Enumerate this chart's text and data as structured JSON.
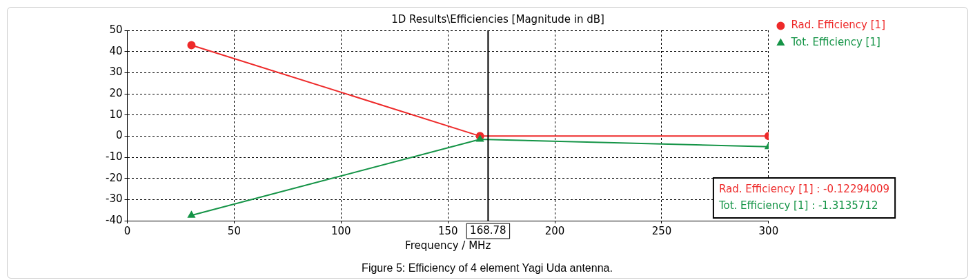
{
  "chart_data": {
    "type": "line",
    "title": "1D Results\\Efficiencies [Magnitude in dB]",
    "xlabel": "Frequency / MHz",
    "series": [
      {
        "name": "Rad. Efficiency [1]",
        "color": "#ee2a2a",
        "x": [
          30,
          165,
          300
        ],
        "values": [
          43,
          0,
          0
        ],
        "marker": "circle"
      },
      {
        "name": "Tot. Efficiency [1]",
        "color": "#159447",
        "x": [
          30,
          165,
          300
        ],
        "values": [
          -37.5,
          -1.5,
          -5
        ],
        "marker": "triangle"
      }
    ],
    "xlim": [
      0,
      300
    ],
    "xticks": [
      0,
      50,
      100,
      150,
      200,
      250,
      300
    ],
    "ylim": [
      -40,
      50
    ],
    "yticks": [
      -40,
      -30,
      -20,
      -10,
      0,
      10,
      20,
      30,
      40,
      50
    ],
    "grid": true,
    "legend": "right",
    "ref_lines": [
      {
        "axis": "x",
        "value": 168.78,
        "label": "168.78",
        "color": "#000000"
      }
    ],
    "annotations": [
      "Rad. Efficiency [1] : -0.12294009",
      "Tot. Efficiency [1] : -1.3135712",
      "Figure 5: Efficiency of 4 element Yagi Uda antenna."
    ]
  }
}
